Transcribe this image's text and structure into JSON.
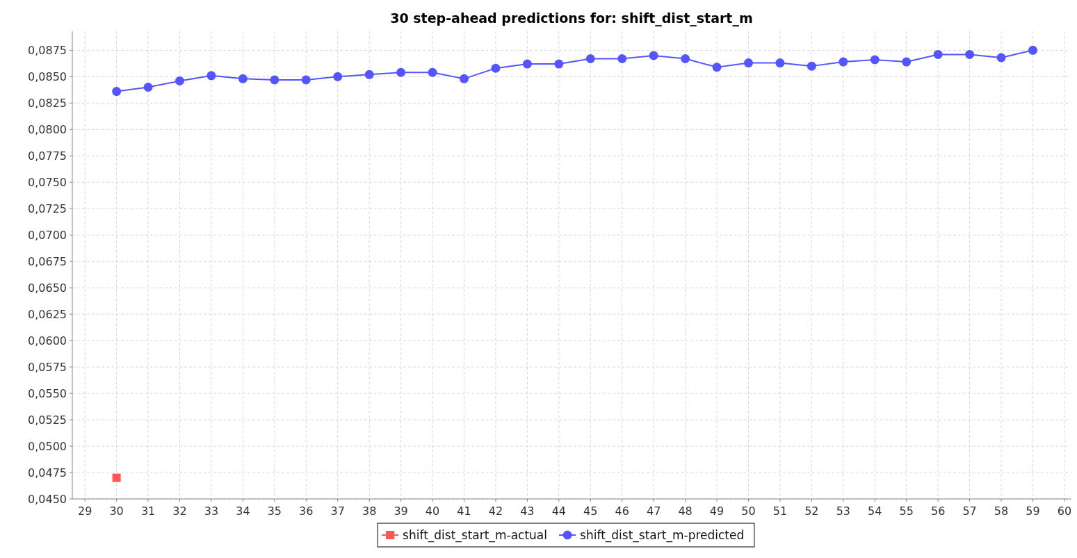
{
  "chart_data": {
    "type": "line",
    "title": "30 step-ahead predictions for: shift_dist_start_m",
    "x": [
      30,
      31,
      32,
      33,
      34,
      35,
      36,
      37,
      38,
      39,
      40,
      41,
      42,
      43,
      44,
      45,
      46,
      47,
      48,
      49,
      50,
      51,
      52,
      53,
      54,
      55,
      56,
      57,
      58,
      59
    ],
    "series": [
      {
        "name": "shift_dist_start_m-actual",
        "color": "#ff5555",
        "marker": "square",
        "x": [
          30
        ],
        "values": [
          0.047
        ]
      },
      {
        "name": "shift_dist_start_m-predicted",
        "color": "#5555ff",
        "marker": "circle",
        "values": [
          0.0836,
          0.084,
          0.0846,
          0.0851,
          0.0848,
          0.0847,
          0.0847,
          0.085,
          0.0852,
          0.0854,
          0.0854,
          0.0848,
          0.0858,
          0.0862,
          0.0862,
          0.0867,
          0.0867,
          0.087,
          0.0867,
          0.0859,
          0.0863,
          0.0863,
          0.086,
          0.0864,
          0.0866,
          0.0864,
          0.0871,
          0.0871,
          0.0868,
          0.0875
        ]
      }
    ],
    "xlim": [
      28.6,
      60.2
    ],
    "xticks": [
      29,
      30,
      31,
      32,
      33,
      34,
      35,
      36,
      37,
      38,
      39,
      40,
      41,
      42,
      43,
      44,
      45,
      46,
      47,
      48,
      49,
      50,
      51,
      52,
      53,
      54,
      55,
      56,
      57,
      58,
      59,
      60
    ],
    "ylim": [
      0.045,
      0.0893
    ],
    "yticks": [
      {
        "value": 0.045,
        "label": "0,0450"
      },
      {
        "value": 0.0475,
        "label": "0,0475"
      },
      {
        "value": 0.05,
        "label": "0,0500"
      },
      {
        "value": 0.0525,
        "label": "0,0525"
      },
      {
        "value": 0.055,
        "label": "0,0550"
      },
      {
        "value": 0.0575,
        "label": "0,0575"
      },
      {
        "value": 0.06,
        "label": "0,0600"
      },
      {
        "value": 0.0625,
        "label": "0,0625"
      },
      {
        "value": 0.065,
        "label": "0,0650"
      },
      {
        "value": 0.0675,
        "label": "0,0675"
      },
      {
        "value": 0.07,
        "label": "0,0700"
      },
      {
        "value": 0.0725,
        "label": "0,0725"
      },
      {
        "value": 0.075,
        "label": "0,0750"
      },
      {
        "value": 0.0775,
        "label": "0,0775"
      },
      {
        "value": 0.08,
        "label": "0,0800"
      },
      {
        "value": 0.0825,
        "label": "0,0825"
      },
      {
        "value": 0.085,
        "label": "0,0850"
      },
      {
        "value": 0.0875,
        "label": "0,0875"
      }
    ],
    "grid": true,
    "legend": "bottom",
    "line_style": "solid"
  }
}
